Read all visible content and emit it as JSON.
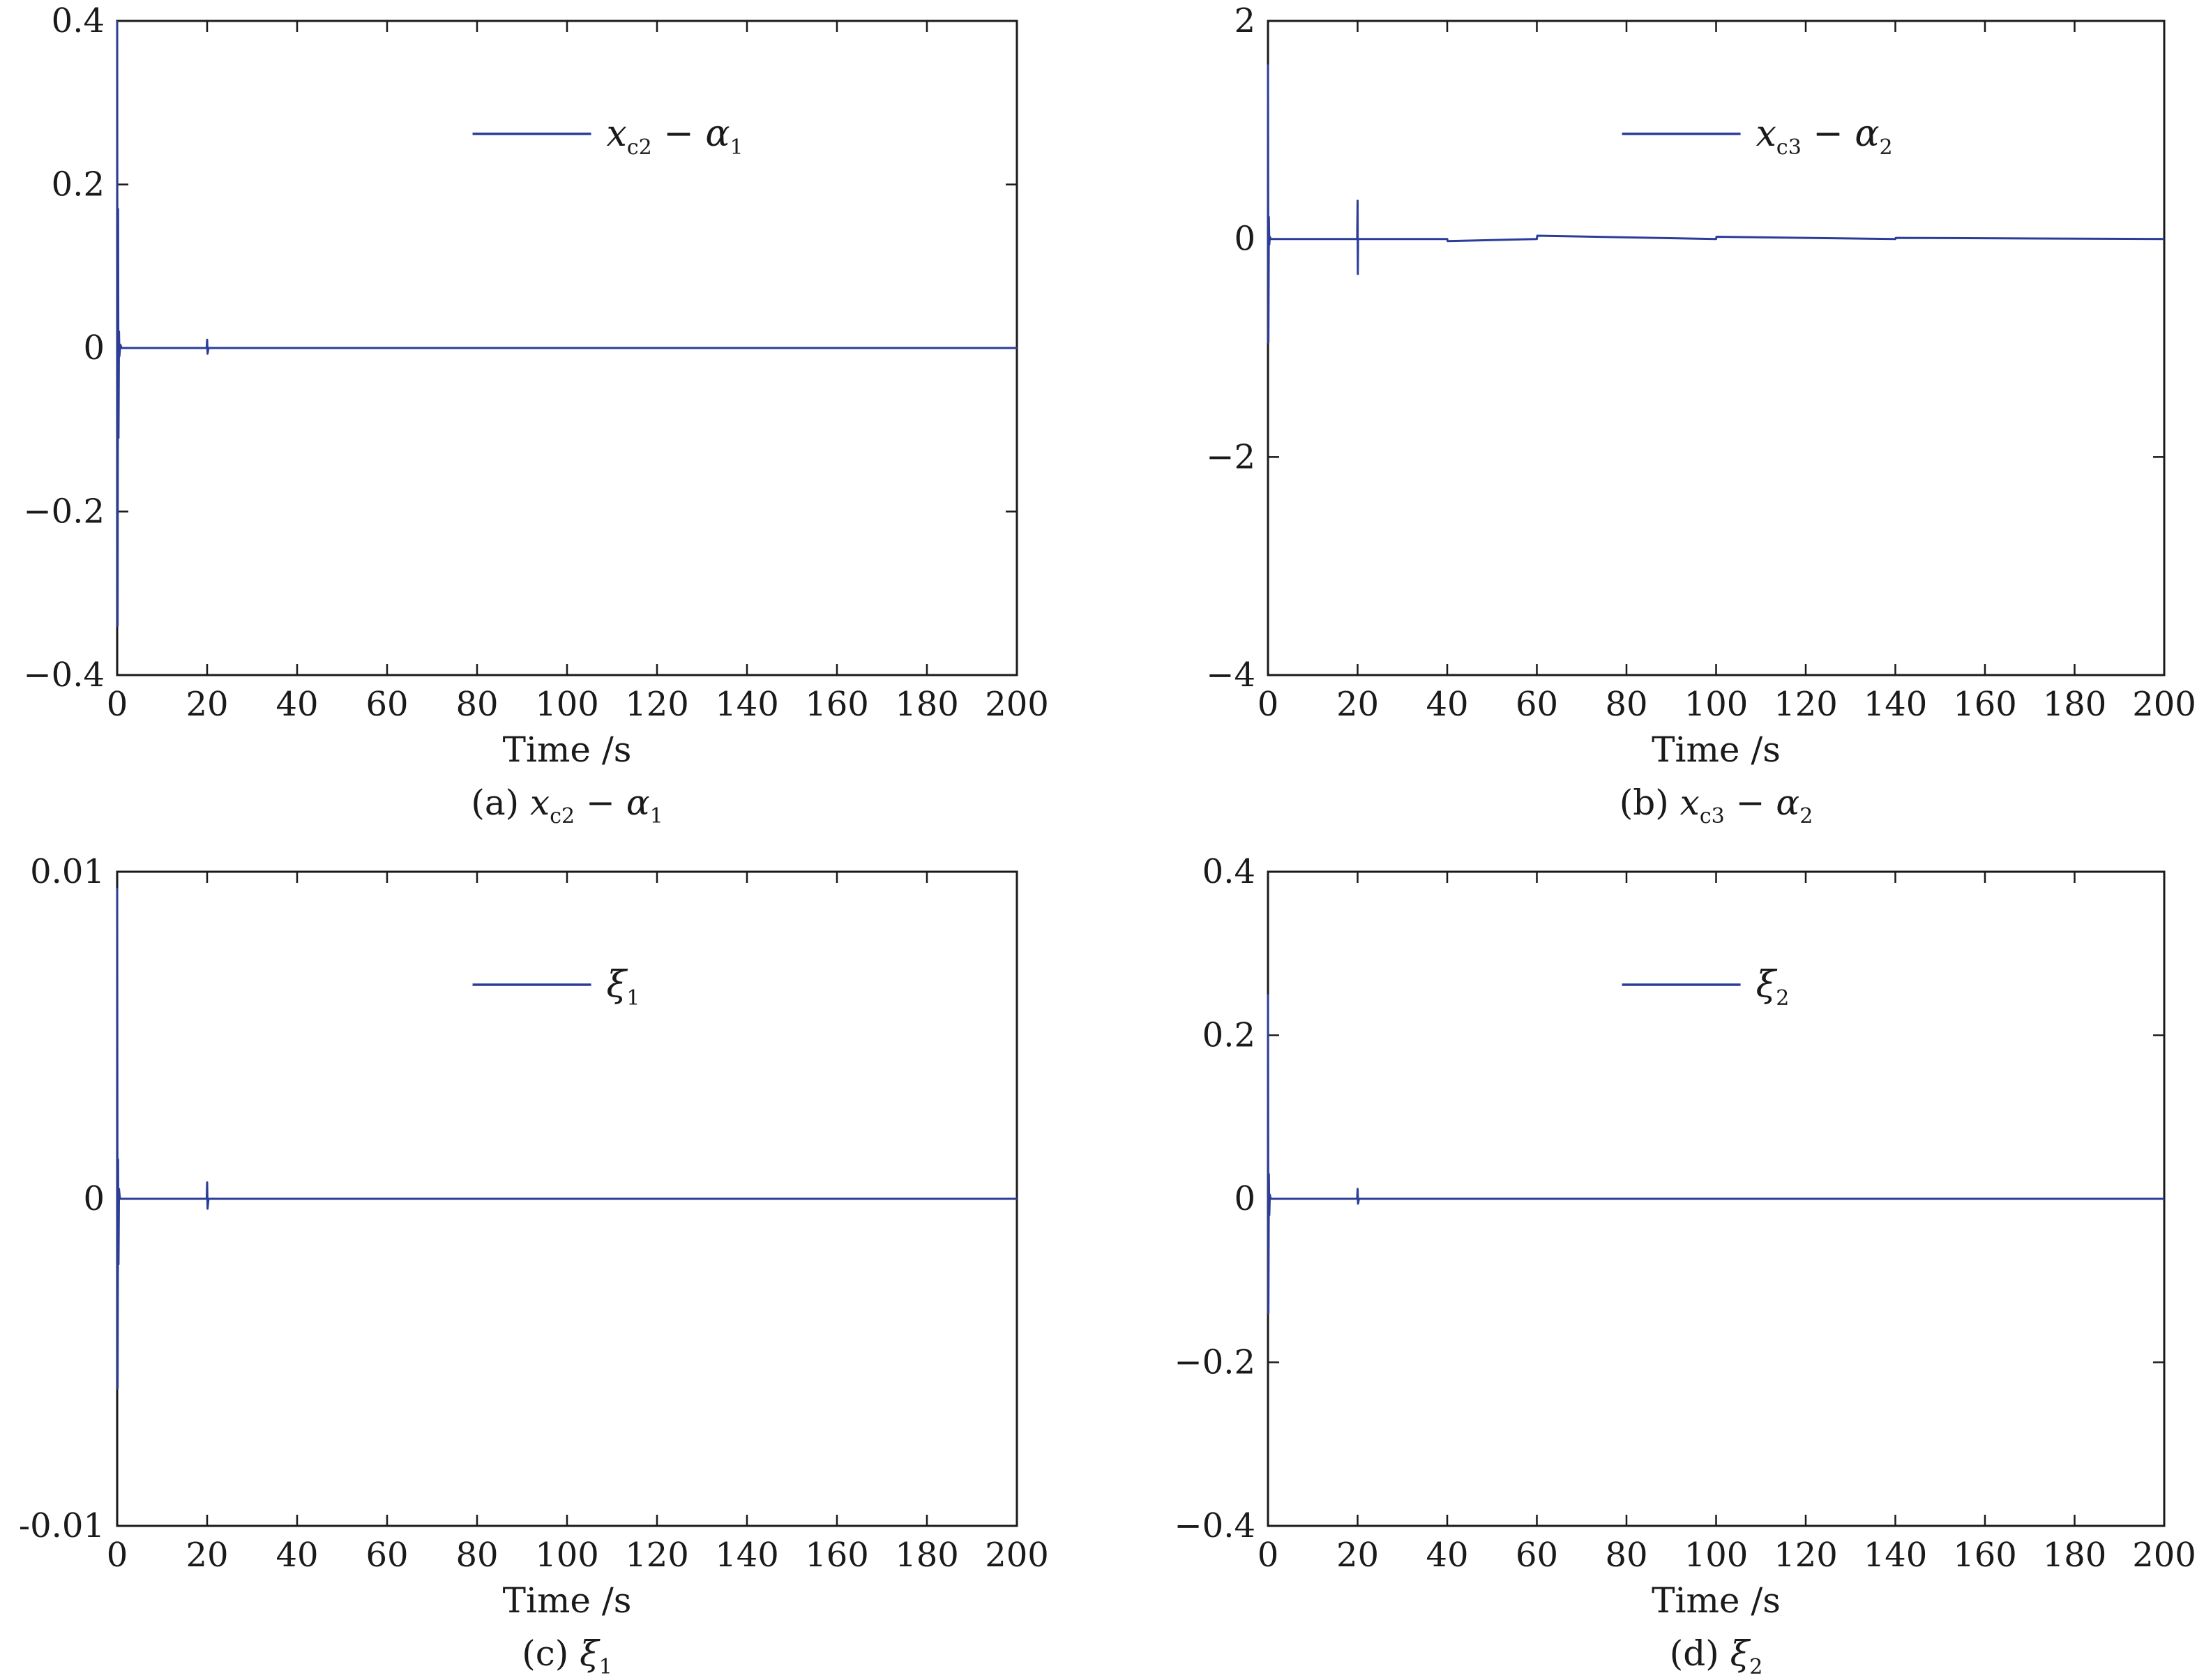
{
  "line_color": "#2b3d99",
  "chart_data": [
    {
      "type": "line",
      "caption": "(a) x_c2 − α_1",
      "caption_prefix": "(a)",
      "legend": {
        "sym": "x",
        "sub1": "c2",
        "op": "−",
        "sym2": "α",
        "sub2": "1"
      },
      "xlabel": "Time /s",
      "ylabel": "",
      "xlim": [
        0,
        200
      ],
      "ylim": [
        -0.4,
        0.4
      ],
      "xticks": [
        0,
        20,
        40,
        60,
        80,
        100,
        120,
        140,
        160,
        180,
        200
      ],
      "xtick_labels": [
        "0",
        "20",
        "40",
        "60",
        "80",
        "100",
        "120",
        "140",
        "160",
        "180",
        "200"
      ],
      "yticks": [
        0.4,
        0.2,
        0,
        -0.2,
        -0.4
      ],
      "ytick_labels": [
        "0.4",
        "0.2",
        "0",
        "−0.2",
        "−0.4"
      ],
      "series": [
        {
          "name": "x_c2 − α_1",
          "x": [
            0,
            0.1,
            0.2,
            0.3,
            0.4,
            0.5,
            0.7,
            1.0,
            1.5,
            2,
            5,
            10,
            19.9,
            20,
            20.1,
            20.3,
            30,
            50,
            80,
            100,
            130,
            150,
            170,
            200
          ],
          "y": [
            0.4,
            -0.34,
            0.17,
            -0.11,
            0.02,
            -0.01,
            0.004,
            0.0,
            0.0,
            0.0,
            0.0,
            0.0,
            0.0,
            0.01,
            -0.007,
            0.0,
            0.0,
            0.0,
            0.0,
            0.0,
            0.0,
            0.0,
            0.0,
            0.0
          ]
        }
      ]
    },
    {
      "type": "line",
      "caption": "(b) x_c3 − α_2",
      "caption_prefix": "(b)",
      "legend": {
        "sym": "x",
        "sub1": "c3",
        "op": "−",
        "sym2": "α",
        "sub2": "2"
      },
      "xlabel": "Time /s",
      "ylabel": "",
      "xlim": [
        0,
        200
      ],
      "ylim": [
        -4,
        2
      ],
      "xticks": [
        0,
        20,
        40,
        60,
        80,
        100,
        120,
        140,
        160,
        180,
        200
      ],
      "xtick_labels": [
        "0",
        "20",
        "40",
        "60",
        "80",
        "100",
        "120",
        "140",
        "160",
        "180",
        "200"
      ],
      "yticks": [
        2,
        0,
        -2,
        -4
      ],
      "ytick_labels": [
        "2",
        "0",
        "−2",
        "−4"
      ],
      "series": [
        {
          "name": "x_c3 − α_2",
          "x": [
            0,
            0.1,
            0.2,
            0.3,
            0.4,
            0.6,
            1.0,
            2,
            10,
            19.9,
            20,
            20.05,
            20.1,
            20.3,
            40,
            40.1,
            60,
            60.1,
            100,
            100.1,
            140,
            140.1,
            200
          ],
          "y": [
            1.6,
            -0.95,
            0.2,
            -0.05,
            0.02,
            0.0,
            0.0,
            0.0,
            0.0,
            0.0,
            0.35,
            -0.32,
            0.0,
            0.0,
            0.0,
            -0.02,
            0.0,
            0.03,
            0.0,
            0.02,
            0.0,
            0.01,
            0.0
          ]
        }
      ]
    },
    {
      "type": "line",
      "caption": "(c) ξ_1",
      "caption_prefix": "(c)",
      "legend": {
        "sym": "ξ",
        "sub1": "1",
        "op": "",
        "sym2": "",
        "sub2": ""
      },
      "xlabel": "Time /s",
      "ylabel": "",
      "xlim": [
        0,
        200
      ],
      "ylim": [
        -0.01,
        0.01
      ],
      "xticks": [
        0,
        20,
        40,
        60,
        80,
        100,
        120,
        140,
        160,
        180,
        200
      ],
      "xtick_labels": [
        "0",
        "20",
        "40",
        "60",
        "80",
        "100",
        "120",
        "140",
        "160",
        "180",
        "200"
      ],
      "yticks": [
        0.01,
        0,
        -0.01
      ],
      "ytick_labels": [
        "0.01",
        "0",
        "-0.01"
      ],
      "series": [
        {
          "name": "ξ_1",
          "x": [
            0,
            0.1,
            0.2,
            0.3,
            0.4,
            0.6,
            1.0,
            2,
            10,
            19.9,
            20,
            20.1,
            20.3,
            30,
            60,
            100,
            130,
            160,
            180,
            200
          ],
          "y": [
            0.0095,
            -0.0058,
            0.0012,
            -0.002,
            0.0003,
            0.0,
            0.0,
            0.0,
            0.0,
            0.0,
            0.0005,
            -0.0003,
            0.0,
            0.0,
            0.0,
            0.0,
            0.0,
            0.0,
            0.0,
            0.0
          ]
        }
      ]
    },
    {
      "type": "line",
      "caption": "(d) ξ_2",
      "caption_prefix": "(d)",
      "legend": {
        "sym": "ξ",
        "sub1": "2",
        "op": "",
        "sym2": "",
        "sub2": ""
      },
      "xlabel": "Time /s",
      "ylabel": "",
      "xlim": [
        0,
        200
      ],
      "ylim": [
        -0.4,
        0.4
      ],
      "xticks": [
        0,
        20,
        40,
        60,
        80,
        100,
        120,
        140,
        160,
        180,
        200
      ],
      "xtick_labels": [
        "0",
        "20",
        "40",
        "60",
        "80",
        "100",
        "120",
        "140",
        "160",
        "180",
        "200"
      ],
      "yticks": [
        0.4,
        0.2,
        0,
        -0.2,
        -0.4
      ],
      "ytick_labels": [
        "0.4",
        "0.2",
        "0",
        "−0.2",
        "−0.4"
      ],
      "series": [
        {
          "name": "ξ_2",
          "x": [
            0,
            0.1,
            0.2,
            0.3,
            0.4,
            0.6,
            1.0,
            2,
            10,
            19.9,
            20,
            20.1,
            20.3,
            50,
            100,
            150,
            200
          ],
          "y": [
            0.25,
            -0.14,
            0.03,
            -0.02,
            0.005,
            0.0,
            0.0,
            0.0,
            0.0,
            0.0,
            0.012,
            -0.006,
            0.0,
            0.0,
            0.0,
            0.0,
            0.0
          ]
        }
      ]
    }
  ]
}
